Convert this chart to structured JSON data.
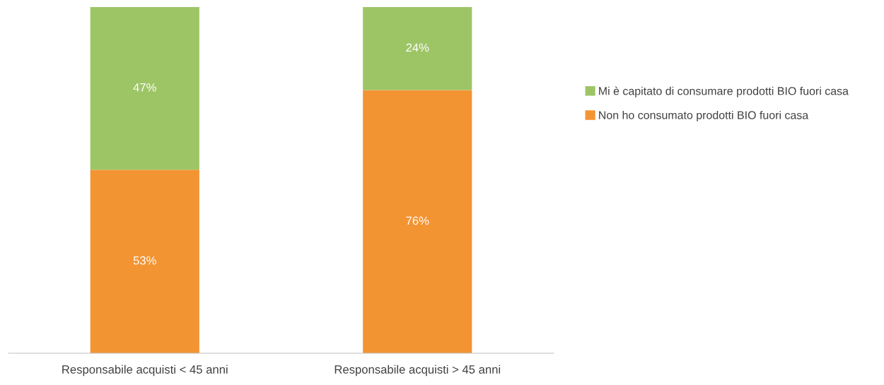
{
  "chart_data": {
    "type": "bar",
    "stacked": true,
    "categories": [
      "Responsabile acquisti < 45 anni",
      "Responsabile acquisti > 45 anni"
    ],
    "series": [
      {
        "name": "Non ho consumato prodotti BIO fuori casa",
        "color": "#f39433",
        "values": [
          53,
          76
        ],
        "value_labels": [
          "53%",
          "76%"
        ]
      },
      {
        "name": "Mi è capitato di consumare prodotti BIO fuori casa",
        "color": "#9dc566",
        "values": [
          47,
          24
        ],
        "value_labels": [
          "47%",
          "24%"
        ]
      }
    ],
    "legend": "right"
  }
}
